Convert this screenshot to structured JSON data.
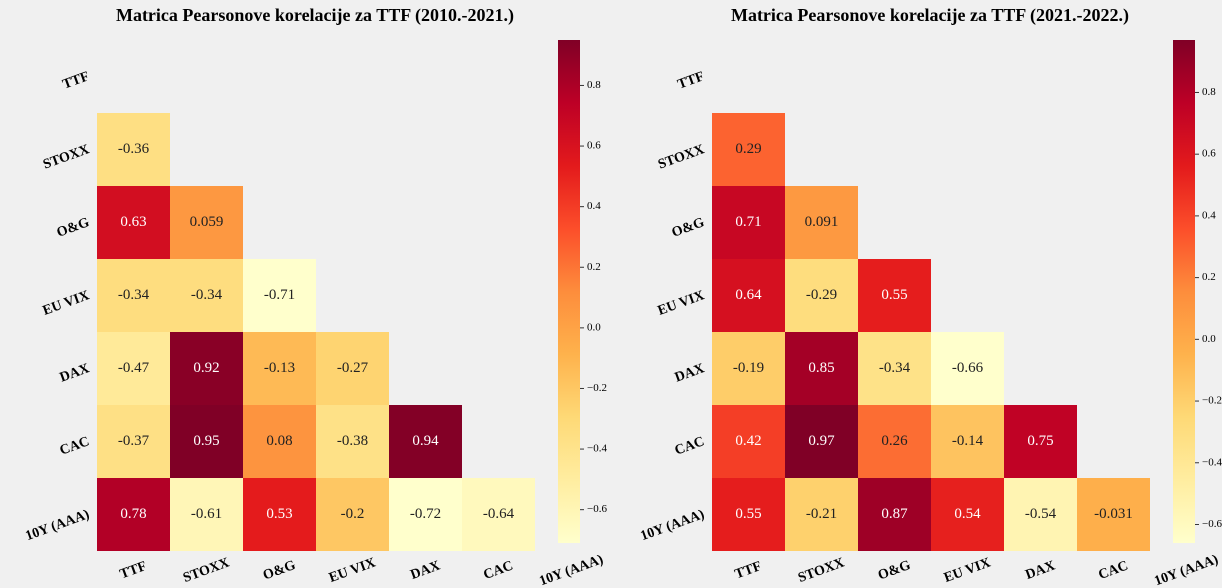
{
  "chart_data": [
    {
      "type": "heatmap",
      "title": "Matrica Pearsonove korelacije za TTF (2010.-2021.)",
      "labels": [
        "TTF",
        "STOXX",
        "O&G",
        "EU VIX",
        "DAX",
        "CAC",
        "10Y (AAA)"
      ],
      "values": [
        [],
        [
          -0.36
        ],
        [
          0.63,
          0.059
        ],
        [
          -0.34,
          -0.34,
          -0.71
        ],
        [
          -0.47,
          0.92,
          -0.13,
          -0.27
        ],
        [
          -0.37,
          0.95,
          0.08,
          -0.38,
          0.94
        ],
        [
          0.78,
          -0.61,
          0.53,
          -0.2,
          -0.72,
          -0.64
        ]
      ],
      "colormap": "YlOrRd",
      "clim": [
        -0.71,
        0.95
      ],
      "cticks": [
        {
          "value": 0.8,
          "label": "0.8"
        },
        {
          "value": 0.6,
          "label": "0.6"
        },
        {
          "value": 0.4,
          "label": "0.4"
        },
        {
          "value": 0.2,
          "label": "0.2"
        },
        {
          "value": 0.0,
          "label": "0.0"
        },
        {
          "value": -0.2,
          "label": "−0.2"
        },
        {
          "value": -0.4,
          "label": "−0.4"
        },
        {
          "value": -0.6,
          "label": "−0.6"
        }
      ]
    },
    {
      "type": "heatmap",
      "title": "Matrica Pearsonove korelacije za TTF (2021.-2022.)",
      "labels": [
        "TTF",
        "STOXX",
        "O&G",
        "EU VIX",
        "DAX",
        "CAC",
        "10Y (AAA)"
      ],
      "values": [
        [],
        [
          0.29
        ],
        [
          0.71,
          0.091
        ],
        [
          0.64,
          -0.29,
          0.55
        ],
        [
          -0.19,
          0.85,
          -0.34,
          -0.66
        ],
        [
          0.42,
          0.97,
          0.26,
          -0.14,
          0.75
        ],
        [
          0.55,
          -0.21,
          0.87,
          0.54,
          -0.54,
          -0.031
        ]
      ],
      "colormap": "YlOrRd",
      "clim": [
        -0.66,
        0.97
      ],
      "cticks": [
        {
          "value": 0.8,
          "label": "0.8"
        },
        {
          "value": 0.6,
          "label": "0.6"
        },
        {
          "value": 0.4,
          "label": "0.4"
        },
        {
          "value": 0.2,
          "label": "0.2"
        },
        {
          "value": 0.0,
          "label": "0.0"
        },
        {
          "value": -0.2,
          "label": "−0.2"
        },
        {
          "value": -0.4,
          "label": "−0.4"
        },
        {
          "value": -0.6,
          "label": "−0.6"
        }
      ]
    }
  ]
}
